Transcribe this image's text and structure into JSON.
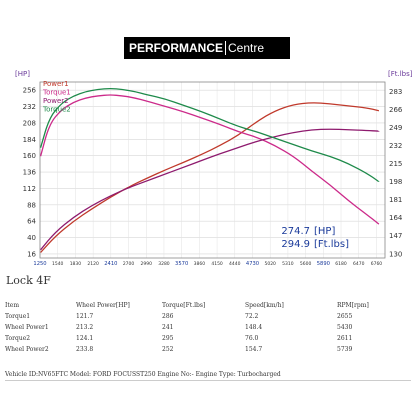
{
  "brand": {
    "part1": "PERFORMANCE",
    "part2": "Centre"
  },
  "chart_data": {
    "type": "line",
    "xlabel": "",
    "y_left_unit": "[HP]",
    "y_right_unit": "[Ft.lbs]",
    "x_ticks": [
      1250,
      1540,
      1830,
      2120,
      2410,
      2700,
      2990,
      3280,
      3570,
      3860,
      4150,
      4440,
      4730,
      5020,
      5310,
      5600,
      5890,
      6180,
      6470,
      6760
    ],
    "x_ticks_highlight": [
      1250,
      2410,
      3570,
      4730,
      5890
    ],
    "x_range": [
      1250,
      6900
    ],
    "y_left_ticks": [
      256,
      232,
      208,
      184,
      160,
      136,
      112,
      88,
      64,
      40,
      16
    ],
    "y_left_range": [
      10,
      268
    ],
    "y_right_ticks": [
      283,
      266,
      249,
      232,
      215,
      198,
      181,
      164,
      147,
      130
    ],
    "y_right_range": [
      126,
      292
    ],
    "grid": true,
    "legend_position": "top-left",
    "readout": {
      "hp": "274.7",
      "hp_unit": "[HP]",
      "ftlbs": "294.9",
      "ftlbs_unit": "[Ft.lbs]"
    },
    "series": [
      {
        "name": "Power1",
        "color": "#c0392b",
        "axis": "left",
        "x": [
          1260,
          1500,
          1800,
          2100,
          2400,
          2700,
          3000,
          3300,
          3600,
          3900,
          4200,
          4500,
          4800,
          5100,
          5400,
          5700,
          6000,
          6300,
          6600,
          6800
        ],
        "y": [
          18,
          42,
          64,
          82,
          99,
          114,
          127,
          139,
          150,
          162,
          175,
          190,
          210,
          226,
          235,
          238,
          236,
          233,
          230,
          226
        ]
      },
      {
        "name": "Torque1",
        "color": "#cc2a8a",
        "axis": "right",
        "x": [
          1260,
          1400,
          1600,
          1800,
          2000,
          2200,
          2400,
          2600,
          2800,
          3000,
          3300,
          3600,
          3900,
          4200,
          4500,
          4800,
          5100,
          5400,
          5700,
          6000,
          6300,
          6600,
          6800
        ],
        "y": [
          222,
          252,
          266,
          273,
          277,
          279,
          280,
          279,
          277,
          274,
          269,
          264,
          258,
          252,
          245,
          240,
          232,
          222,
          208,
          195,
          180,
          167,
          158
        ]
      },
      {
        "name": "Power2",
        "color": "#8e1a6e",
        "axis": "left",
        "x": [
          1260,
          1500,
          1800,
          2100,
          2400,
          2700,
          3000,
          3300,
          3600,
          3900,
          4200,
          4500,
          4800,
          5100,
          5400,
          5700,
          6000,
          6300,
          6600,
          6800
        ],
        "y": [
          22,
          48,
          70,
          87,
          101,
          113,
          123,
          133,
          143,
          153,
          163,
          172,
          181,
          188,
          194,
          198,
          199,
          198,
          197,
          196
        ]
      },
      {
        "name": "Torque2",
        "color": "#1e8a4a",
        "axis": "right",
        "x": [
          1260,
          1400,
          1600,
          1800,
          2000,
          2200,
          2400,
          2600,
          2800,
          3000,
          3300,
          3600,
          3900,
          4200,
          4500,
          4800,
          5100,
          5400,
          5700,
          6000,
          6300,
          6600,
          6800
        ],
        "y": [
          230,
          258,
          272,
          279,
          283,
          285,
          286,
          285,
          283,
          280,
          276,
          270,
          264,
          257,
          250,
          245,
          239,
          233,
          227,
          222,
          215,
          206,
          198
        ]
      }
    ]
  },
  "lock_label": "Lock 4F",
  "table": {
    "headers": [
      "Item",
      "Wheel Power[HP]",
      "Torque[Ft.lbs]",
      "Speed[km/h]",
      "RPM[rpm]"
    ],
    "rows": [
      [
        "Torque1",
        "121.7",
        "286",
        "72.2",
        "2655"
      ],
      [
        "Wheel Power1",
        "213.2",
        "241",
        "148.4",
        "5430"
      ],
      [
        "Torque2",
        "124.1",
        "295",
        "76.0",
        "2611"
      ],
      [
        "Wheel Power2",
        "233.8",
        "252",
        "154.7",
        "5739"
      ]
    ]
  },
  "vehicle_line": "Vehicle ID:NV65FTC Model: FORD FOCUSST250 Engine No:- Engine Type: Turbocharged"
}
